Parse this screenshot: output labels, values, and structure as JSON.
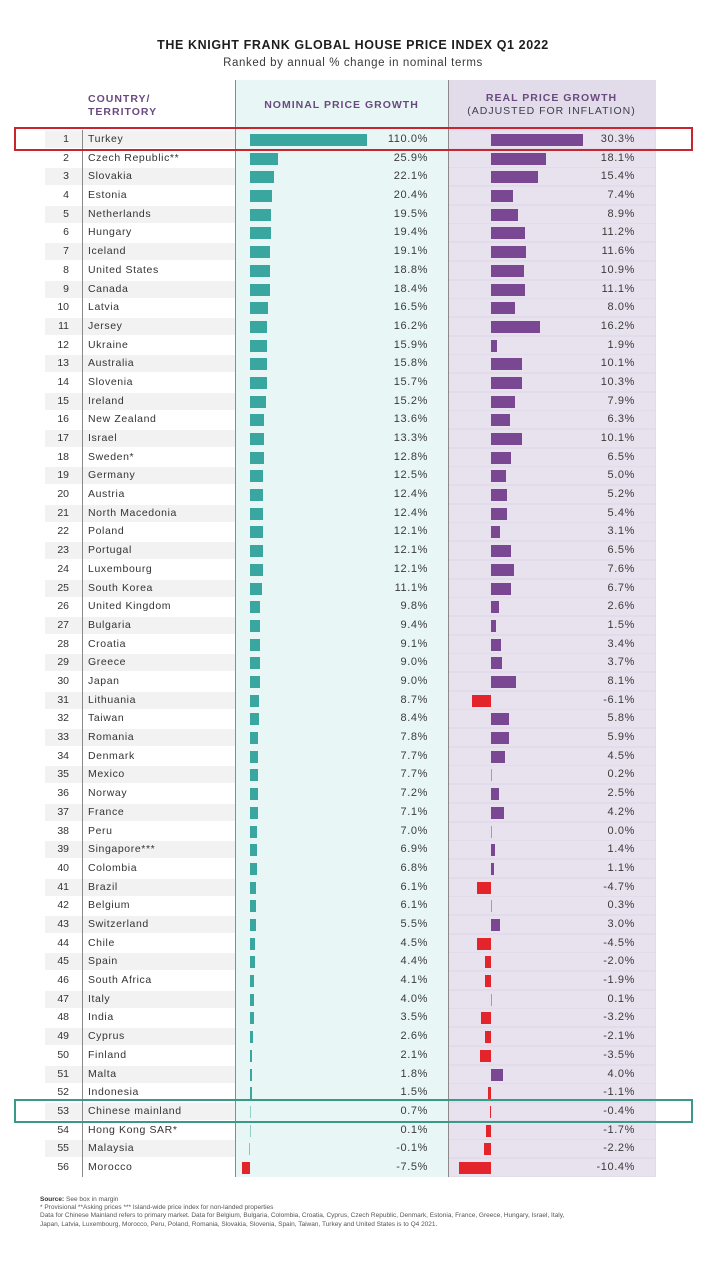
{
  "title": "THE KNIGHT FRANK GLOBAL HOUSE PRICE INDEX Q1 2022",
  "subtitle": "Ranked by annual % change in nominal terms",
  "headers": {
    "country_line1": "COUNTRY/",
    "country_line2": "TERRITORY",
    "nominal": "NOMINAL PRICE GROWTH",
    "real_line1": "REAL PRICE GROWTH",
    "real_line2": "(ADJUSTED FOR INFLATION)"
  },
  "colors": {
    "nominal_bar": "#3aa6a0",
    "real_bar": "#7a4793",
    "negative_bar": "#e3242b",
    "highlight_top": "#c8262f",
    "highlight_bottom": "#3a9a8a"
  },
  "highlights": {
    "red_rank": 1,
    "green_rank": 53
  },
  "chart_data": {
    "type": "table",
    "title": "THE KNIGHT FRANK GLOBAL HOUSE PRICE INDEX Q1 2022",
    "subtitle": "Ranked by annual % change in nominal terms",
    "columns": [
      "Rank",
      "Country/Territory",
      "Nominal price growth (%)",
      "Real price growth (%)"
    ],
    "rows": [
      {
        "rank": 1,
        "country": "Turkey",
        "nominal": 110.0,
        "real": 30.3
      },
      {
        "rank": 2,
        "country": "Czech Republic**",
        "nominal": 25.9,
        "real": 18.1
      },
      {
        "rank": 3,
        "country": "Slovakia",
        "nominal": 22.1,
        "real": 15.4
      },
      {
        "rank": 4,
        "country": "Estonia",
        "nominal": 20.4,
        "real": 7.4
      },
      {
        "rank": 5,
        "country": "Netherlands",
        "nominal": 19.5,
        "real": 8.9
      },
      {
        "rank": 6,
        "country": "Hungary",
        "nominal": 19.4,
        "real": 11.2
      },
      {
        "rank": 7,
        "country": "Iceland",
        "nominal": 19.1,
        "real": 11.6
      },
      {
        "rank": 8,
        "country": "United States",
        "nominal": 18.8,
        "real": 10.9
      },
      {
        "rank": 9,
        "country": "Canada",
        "nominal": 18.4,
        "real": 11.1
      },
      {
        "rank": 10,
        "country": "Latvia",
        "nominal": 16.5,
        "real": 8.0
      },
      {
        "rank": 11,
        "country": "Jersey",
        "nominal": 16.2,
        "real": 16.2
      },
      {
        "rank": 12,
        "country": "Ukraine",
        "nominal": 15.9,
        "real": 1.9
      },
      {
        "rank": 13,
        "country": "Australia",
        "nominal": 15.8,
        "real": 10.1
      },
      {
        "rank": 14,
        "country": "Slovenia",
        "nominal": 15.7,
        "real": 10.3
      },
      {
        "rank": 15,
        "country": "Ireland",
        "nominal": 15.2,
        "real": 7.9
      },
      {
        "rank": 16,
        "country": "New Zealand",
        "nominal": 13.6,
        "real": 6.3
      },
      {
        "rank": 17,
        "country": "Israel",
        "nominal": 13.3,
        "real": 10.1
      },
      {
        "rank": 18,
        "country": "Sweden*",
        "nominal": 12.8,
        "real": 6.5
      },
      {
        "rank": 19,
        "country": "Germany",
        "nominal": 12.5,
        "real": 5.0
      },
      {
        "rank": 20,
        "country": "Austria",
        "nominal": 12.4,
        "real": 5.2
      },
      {
        "rank": 21,
        "country": "North Macedonia",
        "nominal": 12.4,
        "real": 5.4
      },
      {
        "rank": 22,
        "country": "Poland",
        "nominal": 12.1,
        "real": 3.1
      },
      {
        "rank": 23,
        "country": "Portugal",
        "nominal": 12.1,
        "real": 6.5
      },
      {
        "rank": 24,
        "country": "Luxembourg",
        "nominal": 12.1,
        "real": 7.6
      },
      {
        "rank": 25,
        "country": "South Korea",
        "nominal": 11.1,
        "real": 6.7
      },
      {
        "rank": 26,
        "country": "United Kingdom",
        "nominal": 9.8,
        "real": 2.6
      },
      {
        "rank": 27,
        "country": "Bulgaria",
        "nominal": 9.4,
        "real": 1.5
      },
      {
        "rank": 28,
        "country": "Croatia",
        "nominal": 9.1,
        "real": 3.4
      },
      {
        "rank": 29,
        "country": "Greece",
        "nominal": 9.0,
        "real": 3.7
      },
      {
        "rank": 30,
        "country": "Japan",
        "nominal": 9.0,
        "real": 8.1
      },
      {
        "rank": 31,
        "country": "Lithuania",
        "nominal": 8.7,
        "real": -6.1
      },
      {
        "rank": 32,
        "country": "Taiwan",
        "nominal": 8.4,
        "real": 5.8
      },
      {
        "rank": 33,
        "country": "Romania",
        "nominal": 7.8,
        "real": 5.9
      },
      {
        "rank": 34,
        "country": "Denmark",
        "nominal": 7.7,
        "real": 4.5
      },
      {
        "rank": 35,
        "country": "Mexico",
        "nominal": 7.7,
        "real": 0.2
      },
      {
        "rank": 36,
        "country": "Norway",
        "nominal": 7.2,
        "real": 2.5
      },
      {
        "rank": 37,
        "country": "France",
        "nominal": 7.1,
        "real": 4.2
      },
      {
        "rank": 38,
        "country": "Peru",
        "nominal": 7.0,
        "real": 0.0
      },
      {
        "rank": 39,
        "country": "Singapore***",
        "nominal": 6.9,
        "real": 1.4
      },
      {
        "rank": 40,
        "country": "Colombia",
        "nominal": 6.8,
        "real": 1.1
      },
      {
        "rank": 41,
        "country": "Brazil",
        "nominal": 6.1,
        "real": -4.7
      },
      {
        "rank": 42,
        "country": "Belgium",
        "nominal": 6.1,
        "real": 0.3
      },
      {
        "rank": 43,
        "country": "Switzerland",
        "nominal": 5.5,
        "real": 3.0
      },
      {
        "rank": 44,
        "country": "Chile",
        "nominal": 4.5,
        "real": -4.5
      },
      {
        "rank": 45,
        "country": "Spain",
        "nominal": 4.4,
        "real": -2.0
      },
      {
        "rank": 46,
        "country": "South Africa",
        "nominal": 4.1,
        "real": -1.9
      },
      {
        "rank": 47,
        "country": "Italy",
        "nominal": 4.0,
        "real": 0.1
      },
      {
        "rank": 48,
        "country": "India",
        "nominal": 3.5,
        "real": -3.2
      },
      {
        "rank": 49,
        "country": "Cyprus",
        "nominal": 2.6,
        "real": -2.1
      },
      {
        "rank": 50,
        "country": "Finland",
        "nominal": 2.1,
        "real": -3.5
      },
      {
        "rank": 51,
        "country": "Malta",
        "nominal": 1.8,
        "real": 4.0
      },
      {
        "rank": 52,
        "country": "Indonesia",
        "nominal": 1.5,
        "real": -1.1
      },
      {
        "rank": 53,
        "country": "Chinese mainland",
        "nominal": 0.7,
        "real": -0.4
      },
      {
        "rank": 54,
        "country": "Hong Kong SAR*",
        "nominal": 0.1,
        "real": -1.7
      },
      {
        "rank": 55,
        "country": "Malaysia",
        "nominal": -0.1,
        "real": -2.2
      },
      {
        "rank": 56,
        "country": "Morocco",
        "nominal": -7.5,
        "real": -10.4
      }
    ]
  },
  "footnotes": {
    "source_label": "Source:",
    "source_text": "See box in margin",
    "line1": "* Provisional **Asking prices *** Island-wide price index for non-landed properties",
    "line2": "Data for Chinese Mainland refers to primary market. Data for Belgium, Bulgaria, Colombia, Croatia, Cyprus, Czech Republic, Denmark, Estonia, France, Greece, Hungary, Israel, Italy,",
    "line3": "Japan, Latvia, Luxembourg, Morocco, Peru, Poland, Romania, Slovakia, Slovenia, Spain, Taiwan, Turkey and United States is to Q4 2021."
  }
}
